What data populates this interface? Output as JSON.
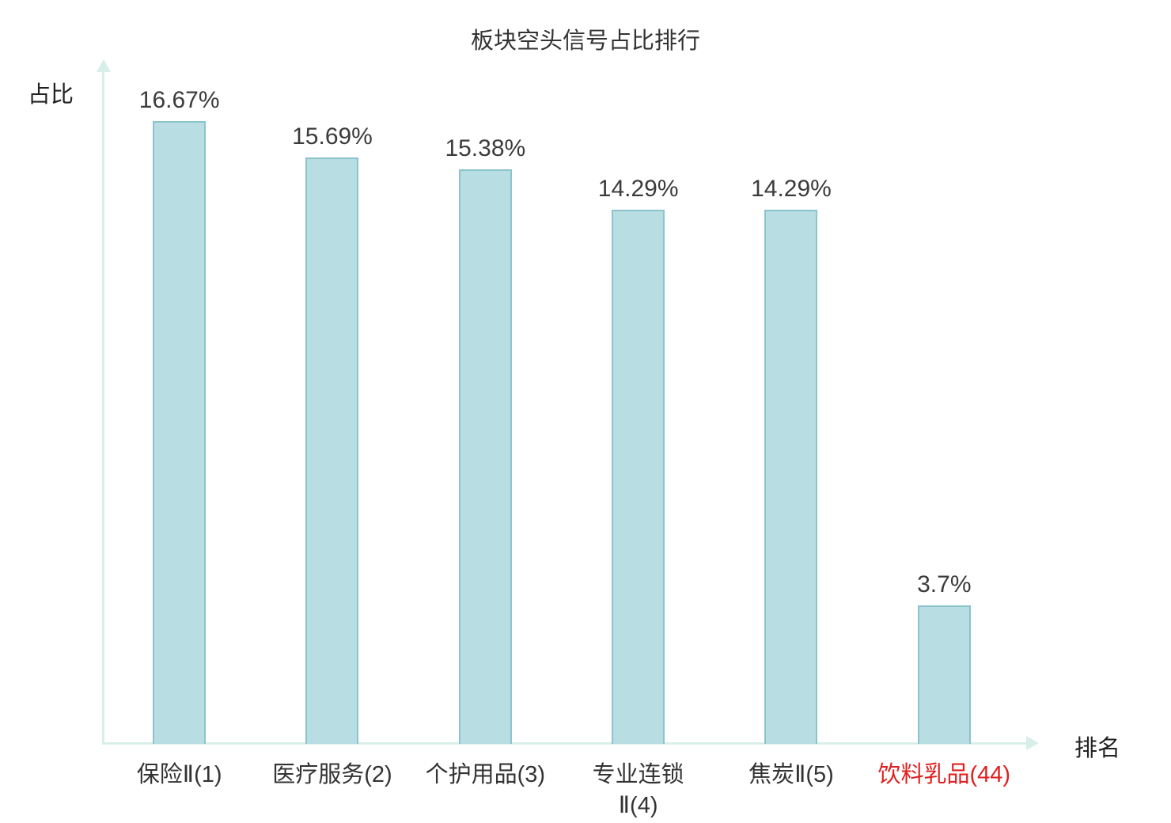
{
  "chart_data": {
    "type": "bar",
    "title": "板块空头信号占比排行",
    "xlabel": "排名",
    "ylabel": "占比",
    "ylim": [
      0,
      18
    ],
    "grid": false,
    "legend": false,
    "categories": [
      "保险Ⅱ(1)",
      "医疗服务(2)",
      "个护用品(3)",
      "专业连锁\nⅡ(4)",
      "焦炭Ⅱ(5)",
      "饮料乳品(44)"
    ],
    "values": [
      16.67,
      15.69,
      15.38,
      14.29,
      14.29,
      3.7
    ],
    "value_labels": [
      "16.67%",
      "15.69%",
      "15.38%",
      "14.29%",
      "14.29%",
      "3.7%"
    ],
    "category_colors": [
      "#333333",
      "#333333",
      "#333333",
      "#333333",
      "#333333",
      "#e02020"
    ],
    "bar_fill": "#b8dde2",
    "bar_border": "#8cc4cc",
    "axis_color": "#d8efe9"
  }
}
